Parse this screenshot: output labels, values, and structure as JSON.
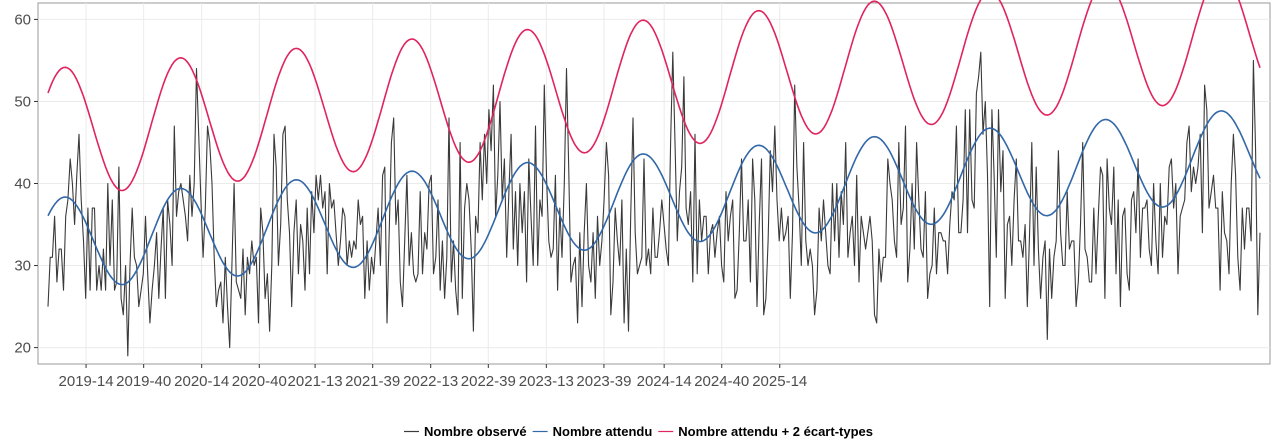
{
  "chart_data": {
    "type": "line",
    "title": "",
    "xlabel": "",
    "ylabel": "",
    "ylim": [
      18,
      62
    ],
    "yticks": [
      20,
      30,
      40,
      50,
      60
    ],
    "xticks": [
      "2019-14",
      "2019-40",
      "2020-14",
      "2020-40",
      "2021-13",
      "2021-39",
      "2022-13",
      "2022-39",
      "2023-13",
      "2023-39",
      "2024-14",
      "2024-40",
      "2025-14"
    ],
    "grid": true,
    "legend_position": "bottom",
    "series": [
      {
        "name": "Nombre observé",
        "color": "#3a3a3a",
        "weeks_start": "2018-49",
        "values": [
          25,
          31,
          31,
          36,
          28,
          32,
          32,
          27,
          36,
          38,
          43,
          40,
          35,
          41,
          46,
          38,
          33,
          26,
          37,
          27,
          37,
          37,
          27,
          30,
          27,
          32,
          27,
          40,
          30,
          38,
          27,
          28,
          42,
          26,
          24,
          30,
          19,
          30,
          37,
          31,
          30,
          25,
          27,
          29,
          36,
          29,
          23,
          27,
          30,
          34,
          26,
          32,
          37,
          26,
          38,
          35,
          30,
          47,
          36,
          39,
          40,
          38,
          36,
          33,
          41,
          36,
          40,
          54,
          46,
          38,
          31,
          37,
          47,
          45,
          40,
          31,
          25,
          27,
          28,
          23,
          31,
          25,
          20,
          30,
          40,
          28,
          27,
          26,
          32,
          24,
          31,
          29,
          33,
          30,
          31,
          23,
          37,
          34,
          26,
          29,
          22,
          30,
          46,
          42,
          30,
          35,
          46,
          47,
          38,
          34,
          25,
          34,
          38,
          29,
          35,
          33,
          27,
          37,
          29,
          39,
          34,
          41,
          38,
          41,
          37,
          39,
          29,
          40,
          37,
          38,
          34,
          30,
          33,
          37,
          36,
          30,
          33,
          31,
          33,
          32,
          38,
          35,
          36,
          26,
          33,
          27,
          31,
          29,
          33,
          37,
          30,
          41,
          42,
          23,
          34,
          45,
          48,
          35,
          38,
          28,
          25,
          33,
          41,
          30,
          34,
          29,
          28,
          29,
          39,
          29,
          34,
          32,
          40,
          41,
          29,
          31,
          38,
          27,
          33,
          26,
          31,
          48,
          28,
          33,
          27,
          24,
          45,
          26,
          37,
          40,
          38,
          32,
          22,
          36,
          34,
          45,
          38,
          46,
          40,
          49,
          44,
          52,
          36,
          41,
          50,
          38,
          43,
          31,
          39,
          46,
          32,
          39,
          30,
          40,
          34,
          39,
          28,
          43,
          36,
          30,
          47,
          30,
          38,
          36,
          52,
          41,
          33,
          31,
          32,
          41,
          27,
          37,
          31,
          40,
          54,
          42,
          28,
          30,
          31,
          23,
          34,
          25,
          34,
          40,
          30,
          28,
          34,
          26,
          36,
          30,
          33,
          38,
          45,
          41,
          24,
          28,
          37,
          33,
          30,
          38,
          23,
          32,
          22,
          36,
          48,
          34,
          29,
          30,
          31,
          43,
          30,
          32,
          29,
          37,
          31,
          31,
          34,
          38,
          35,
          32,
          30,
          45,
          56,
          45,
          33,
          39,
          42,
          53,
          37,
          35,
          39,
          28,
          46,
          29,
          38,
          33,
          36,
          36,
          29,
          34,
          35,
          31,
          34,
          36,
          30,
          28,
          39,
          33,
          36,
          38,
          26,
          27,
          34,
          43,
          33,
          33,
          38,
          28,
          43,
          38,
          25,
          35,
          43,
          24,
          26,
          33,
          44,
          39,
          47,
          38,
          33,
          37,
          33,
          34,
          36,
          26,
          34,
          52,
          42,
          37,
          30,
          45,
          33,
          30,
          32,
          30,
          24,
          27,
          37,
          33,
          38,
          34,
          30,
          29,
          40,
          33,
          40,
          31,
          39,
          35,
          45,
          31,
          34,
          36,
          30,
          41,
          28,
          36,
          34,
          32,
          34,
          36,
          33,
          24,
          23,
          32,
          28,
          31,
          31,
          43,
          40,
          38,
          33,
          31,
          45,
          35,
          37,
          47,
          28,
          32,
          40,
          32,
          45,
          38,
          32,
          31,
          39,
          26,
          29,
          30,
          37,
          29,
          34,
          34,
          33,
          33,
          29,
          35,
          39,
          38,
          47,
          34,
          34,
          38,
          49,
          34,
          49,
          38,
          37,
          51,
          53,
          56,
          46,
          50,
          41,
          25,
          49,
          41,
          31,
          49,
          39,
          44,
          26,
          35,
          36,
          30,
          38,
          43,
          33,
          33,
          31,
          35,
          25,
          34,
          45,
          30,
          42,
          32,
          26,
          31,
          33,
          21,
          32,
          26,
          31,
          33,
          44,
          34,
          30,
          30,
          39,
          32,
          33,
          33,
          25,
          28,
          35,
          45,
          32,
          31,
          28,
          28,
          37,
          29,
          36,
          42,
          41,
          26,
          43,
          37,
          35,
          42,
          29,
          38,
          25,
          36,
          37,
          29,
          27,
          38,
          39,
          34,
          43,
          31,
          37,
          37,
          38,
          32,
          30,
          40,
          33,
          29,
          40,
          31,
          36,
          35,
          42,
          43,
          37,
          40,
          29,
          36,
          37,
          38,
          45,
          47,
          39,
          42,
          40,
          42,
          46,
          34,
          52,
          49,
          37,
          39,
          41,
          37,
          37,
          27,
          39,
          34,
          33,
          29,
          40,
          46,
          41,
          31,
          27,
          37,
          32,
          37,
          37,
          33,
          55,
          44,
          24,
          34
        ]
      },
      {
        "name": "Nombre attendu",
        "color": "#3267a8",
        "curve": {
          "base_start": 32.6,
          "slope_per_year": 1.05,
          "amplitude": 5.6,
          "peak_offset_weeks": 7.5,
          "period_weeks": 52.18
        }
      },
      {
        "name": "Nombre attendu  + 2 écart-types",
        "color": "#e0245e",
        "curve": {
          "base_start": 46.2,
          "slope_per_year": 1.15,
          "amplitude": 7.8,
          "peak_offset_weeks": 7.5,
          "period_weeks": 52.18
        }
      }
    ]
  }
}
